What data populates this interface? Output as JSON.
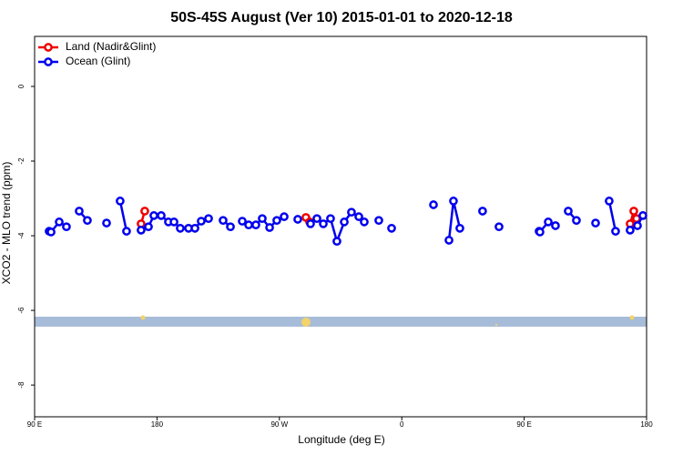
{
  "chart_data": {
    "type": "line",
    "title": "50S-45S August (Ver 10)   2015-01-01 to 2020-12-18",
    "x_label": "Longitude (deg E)",
    "y_label": "XCO2 - MLO trend (ppm)",
    "xlim": [
      90,
      540
    ],
    "xticks": [
      {
        "value": 90,
        "label": "90 E"
      },
      180,
      {
        "value": 270,
        "label": "90 W"
      },
      {
        "value": 360,
        "label": "0"
      },
      {
        "value": 450,
        "label": "90 E"
      },
      {
        "value": 540,
        "label": "180"
      }
    ],
    "ylim": [
      -8.85,
      1.34
    ],
    "yticks": [
      0,
      -2,
      -4,
      -6,
      -8
    ],
    "legend": "top-left",
    "series": [
      {
        "name": "Land (Nadir&Glint)",
        "color": "#ee0000",
        "x": [
          168.3,
          171.0,
          null,
          289.5,
          292.2,
          null,
          527.9,
          530.6,
          532.6
        ],
        "values": [
          -3.68,
          -3.34,
          null,
          -3.51,
          -3.63,
          null,
          -3.68,
          -3.34,
          -3.54
        ]
      },
      {
        "name": "Ocean (Glint)",
        "color": "#0000ee",
        "x": [
          100.7,
          102.1,
          108.1,
          113.4,
          null,
          122.8,
          128.8,
          null,
          142.9,
          null,
          152.9,
          157.6,
          null,
          168.3,
          173.7,
          177.7,
          183.1,
          188.4,
          192.5,
          197.1,
          203.2,
          207.9,
          212.5,
          217.9,
          null,
          228.6,
          234.0,
          null,
          242.7,
          247.4,
          252.7,
          257.4,
          262.8,
          268.1,
          273.5,
          null,
          283.5,
          null,
          292.9,
          297.6,
          302.3,
          307.6,
          312.3,
          317.7,
          323.0,
          328.4,
          332.4,
          null,
          343.1,
          null,
          352.5,
          null,
          383.3,
          null,
          394.7,
          398.0,
          402.7,
          null,
          419.4,
          null,
          431.5,
          null,
          461.0,
          461.6,
          467.7,
          473.0,
          null,
          482.4,
          488.4,
          null,
          502.5,
          null,
          512.5,
          517.2,
          null,
          527.9,
          533.3,
          537.3
        ],
        "values": [
          -3.88,
          -3.9,
          -3.63,
          -3.76,
          null,
          -3.34,
          -3.59,
          null,
          -3.66,
          null,
          -3.07,
          -3.88,
          null,
          -3.85,
          -3.76,
          -3.46,
          -3.46,
          -3.63,
          -3.63,
          -3.8,
          -3.8,
          -3.8,
          -3.61,
          -3.54,
          null,
          -3.59,
          -3.76,
          null,
          -3.61,
          -3.71,
          -3.71,
          -3.54,
          -3.78,
          -3.59,
          -3.49,
          null,
          -3.56,
          null,
          -3.68,
          -3.54,
          -3.68,
          -3.54,
          -4.15,
          -3.63,
          -3.37,
          -3.49,
          -3.63,
          null,
          -3.59,
          null,
          -3.8,
          null,
          -3.17,
          null,
          -4.12,
          -3.07,
          -3.8,
          null,
          -3.34,
          null,
          -3.76,
          null,
          -3.88,
          -3.9,
          -3.63,
          -3.73,
          null,
          -3.34,
          -3.59,
          null,
          -3.66,
          null,
          -3.07,
          -3.88,
          null,
          -3.85,
          -3.73,
          -3.46
        ]
      }
    ]
  }
}
